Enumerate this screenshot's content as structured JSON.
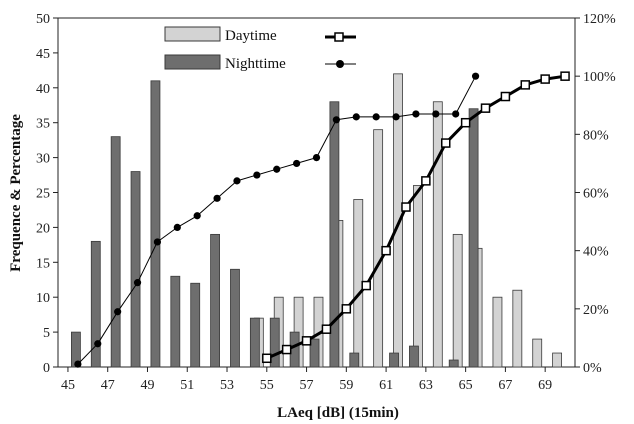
{
  "chart_data": {
    "type": "bar",
    "xlabel": "LAeq [dB] (15min)",
    "ylabel": "Frequence & Percentage",
    "x_ticks": [
      "45",
      "47",
      "49",
      "51",
      "53",
      "55",
      "57",
      "59",
      "61",
      "63",
      "65",
      "67",
      "69"
    ],
    "y_left_ticks": [
      "0",
      "5",
      "10",
      "15",
      "20",
      "25",
      "30",
      "35",
      "40",
      "45",
      "50"
    ],
    "y_right_ticks": [
      "0%",
      "20%",
      "40%",
      "60%",
      "80%",
      "100%",
      "120%"
    ],
    "ylim": [
      0,
      50
    ],
    "y2lim": [
      0,
      1.2
    ],
    "xlim": [
      44.5,
      70.5
    ],
    "legend": {
      "position": "top-center",
      "daytime_label": "Daytime",
      "nighttime_label": "Nighttime"
    },
    "colors": {
      "daytime_bar": "#d3d3d3",
      "nighttime_bar": "#6e6e6e",
      "bar_edge": "#3a3a3a",
      "line": "#000000"
    },
    "series": [
      {
        "name": "Daytime",
        "kind": "bar",
        "x": [
          54.6,
          55.6,
          56.6,
          57.6,
          58.6,
          59.6,
          60.6,
          61.6,
          62.6,
          63.6,
          64.6,
          65.6,
          66.6,
          67.6,
          68.6,
          69.6
        ],
        "values": [
          7,
          10,
          10,
          10,
          21,
          24,
          34,
          42,
          26,
          38,
          19,
          17,
          10,
          11,
          4,
          2
        ]
      },
      {
        "name": "Nighttime",
        "kind": "bar",
        "x": [
          45.4,
          46.4,
          47.4,
          48.4,
          49.4,
          50.4,
          51.4,
          52.4,
          53.4,
          54.4,
          55.4,
          56.4,
          57.4,
          58.4,
          59.4,
          61.4,
          62.4,
          64.4,
          65.4
        ],
        "values": [
          5,
          18,
          33,
          28,
          41,
          13,
          12,
          19,
          14,
          7,
          7,
          5,
          4,
          38,
          2,
          2,
          3,
          1,
          37
        ]
      },
      {
        "name": "Daytime",
        "kind": "cumulative",
        "marker": "square",
        "x": [
          55,
          56,
          57,
          58,
          59,
          60,
          61,
          62,
          63,
          64,
          65,
          66,
          67,
          68,
          69,
          70
        ],
        "values": [
          0.03,
          0.06,
          0.09,
          0.13,
          0.2,
          0.28,
          0.4,
          0.55,
          0.64,
          0.77,
          0.84,
          0.89,
          0.93,
          0.97,
          0.99,
          1.0
        ]
      },
      {
        "name": "Nighttime",
        "kind": "cumulative",
        "marker": "circle",
        "x": [
          45.5,
          46.5,
          47.5,
          48.5,
          49.5,
          50.5,
          51.5,
          52.5,
          53.5,
          54.5,
          55.5,
          56.5,
          57.5,
          58.5,
          59.5,
          60.5,
          61.5,
          62.5,
          63.5,
          64.5,
          65.5
        ],
        "values": [
          0.01,
          0.08,
          0.19,
          0.29,
          0.43,
          0.48,
          0.52,
          0.58,
          0.64,
          0.66,
          0.68,
          0.7,
          0.72,
          0.85,
          0.86,
          0.86,
          0.86,
          0.87,
          0.87,
          0.87,
          1.0
        ]
      }
    ]
  }
}
